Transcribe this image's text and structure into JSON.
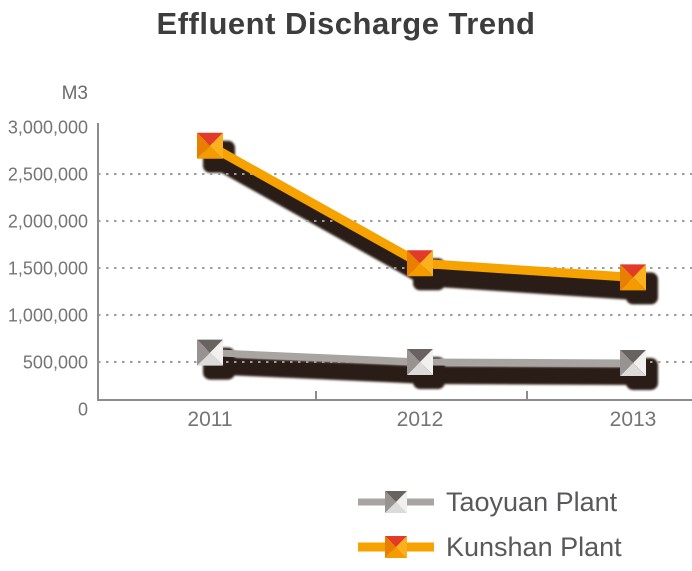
{
  "title": "Effluent Discharge Trend",
  "y_axis": {
    "unit_label": "M3",
    "tick_labels": [
      "3,000,000",
      "2,500,000",
      "2,000,000",
      "1,500,000",
      "1,000,000",
      "500,000",
      "0"
    ]
  },
  "x_axis": {
    "labels": [
      "2011",
      "2012",
      "2013"
    ]
  },
  "legend": {
    "items": [
      "Taoyuan Plant",
      "Kunshan Plant"
    ],
    "position": "bottom-right"
  },
  "colors": {
    "title_text": "#3d3d3d",
    "axis_line": "#8c8c8c",
    "axis_label_text": "#757575",
    "gridline": "#9e9e9e",
    "legend_text": "#58595b",
    "series_shadow": "#2b1d12"
  },
  "chart_data": {
    "type": "line",
    "categories": [
      "2011",
      "2012",
      "2013"
    ],
    "series": [
      {
        "name": "Taoyuan Plant",
        "values": [
          600000,
          500000,
          490000
        ],
        "color": "#a7a4a2",
        "line_width": 7,
        "marker_facets": {
          "top": "#686361",
          "right": "#f1f0ef",
          "bottom": "#dddbda",
          "left": "#989391"
        }
      },
      {
        "name": "Kunshan Plant",
        "values": [
          2800000,
          1550000,
          1400000
        ],
        "color": "#f6a200",
        "line_width": 9,
        "marker_facets": {
          "top": "#e23b2a",
          "right": "#fbb01e",
          "bottom": "#f59b00",
          "left": "#e97f00"
        }
      }
    ],
    "title": "Effluent Discharge Trend",
    "xlabel": "",
    "ylabel": "M3",
    "ylim": [
      0,
      3000000
    ],
    "ytick_step": 500000,
    "grid": "horizontal-dotted",
    "legend_position": "bottom-right",
    "marker": "faceted-square",
    "effect": "heavy-dark-drop-shadow"
  }
}
